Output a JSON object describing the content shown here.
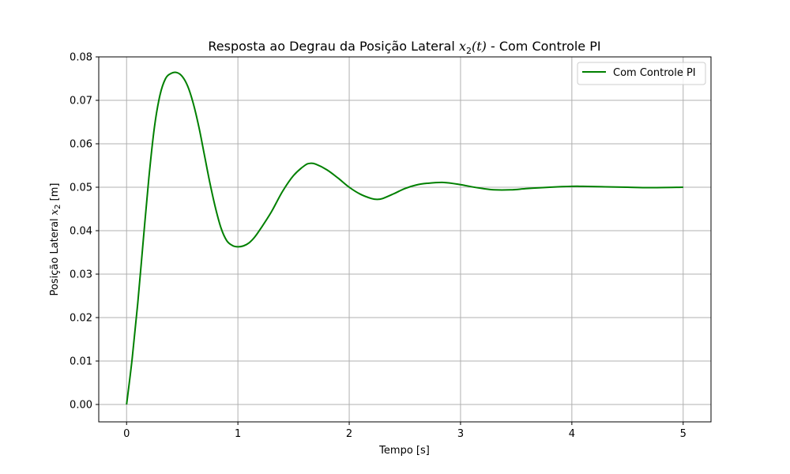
{
  "chart_data": {
    "type": "line",
    "title_prefix": "Resposta ao Degrau da Posição Lateral ",
    "title_math_var": "x",
    "title_math_sub": "2",
    "title_math_arg": "(t)",
    "title_suffix": " - Com Controle PI",
    "xlabel": "Tempo [s]",
    "ylabel_prefix": "Posição Lateral ",
    "ylabel_math_var": "x",
    "ylabel_math_sub": "2",
    "ylabel_suffix": " [m]",
    "xlim": [
      -0.25,
      5.25
    ],
    "ylim": [
      -0.004,
      0.08
    ],
    "xticks": [
      0,
      1,
      2,
      3,
      4,
      5
    ],
    "xtick_labels": [
      "0",
      "1",
      "2",
      "3",
      "4",
      "5"
    ],
    "yticks": [
      0.0,
      0.01,
      0.02,
      0.03,
      0.04,
      0.05,
      0.06,
      0.07,
      0.08
    ],
    "ytick_labels": [
      "0.00",
      "0.01",
      "0.02",
      "0.03",
      "0.04",
      "0.05",
      "0.06",
      "0.07",
      "0.08"
    ],
    "grid": true,
    "legend_position": "top-right",
    "series": [
      {
        "name": "Com Controle PI",
        "color": "#008000",
        "x": [
          0,
          0.05,
          0.1,
          0.15,
          0.2,
          0.25,
          0.3,
          0.35,
          0.4,
          0.45,
          0.5,
          0.55,
          0.6,
          0.65,
          0.7,
          0.75,
          0.8,
          0.85,
          0.9,
          0.95,
          1.0,
          1.05,
          1.1,
          1.15,
          1.2,
          1.3,
          1.4,
          1.5,
          1.6,
          1.65,
          1.7,
          1.8,
          1.9,
          2.0,
          2.1,
          2.2,
          2.25,
          2.3,
          2.4,
          2.5,
          2.6,
          2.7,
          2.85,
          3.0,
          3.1,
          3.2,
          3.3,
          3.45,
          3.6,
          3.8,
          4.0,
          4.1,
          4.3,
          4.5,
          4.7,
          5.0
        ],
        "y": [
          0.0,
          0.0105,
          0.0232,
          0.0378,
          0.0521,
          0.0638,
          0.0712,
          0.075,
          0.0762,
          0.0764,
          0.0755,
          0.0732,
          0.0692,
          0.0638,
          0.0573,
          0.0508,
          0.0451,
          0.0405,
          0.0377,
          0.0366,
          0.0363,
          0.0365,
          0.0372,
          0.0385,
          0.0403,
          0.0443,
          0.049,
          0.0527,
          0.055,
          0.0555,
          0.0553,
          0.054,
          0.0521,
          0.05,
          0.0484,
          0.0474,
          0.0472,
          0.0474,
          0.0485,
          0.0497,
          0.0505,
          0.0509,
          0.0511,
          0.0506,
          0.0501,
          0.0497,
          0.0494,
          0.0494,
          0.0497,
          0.05,
          0.0502,
          0.0502,
          0.0501,
          0.05,
          0.0499,
          0.05
        ]
      }
    ]
  }
}
